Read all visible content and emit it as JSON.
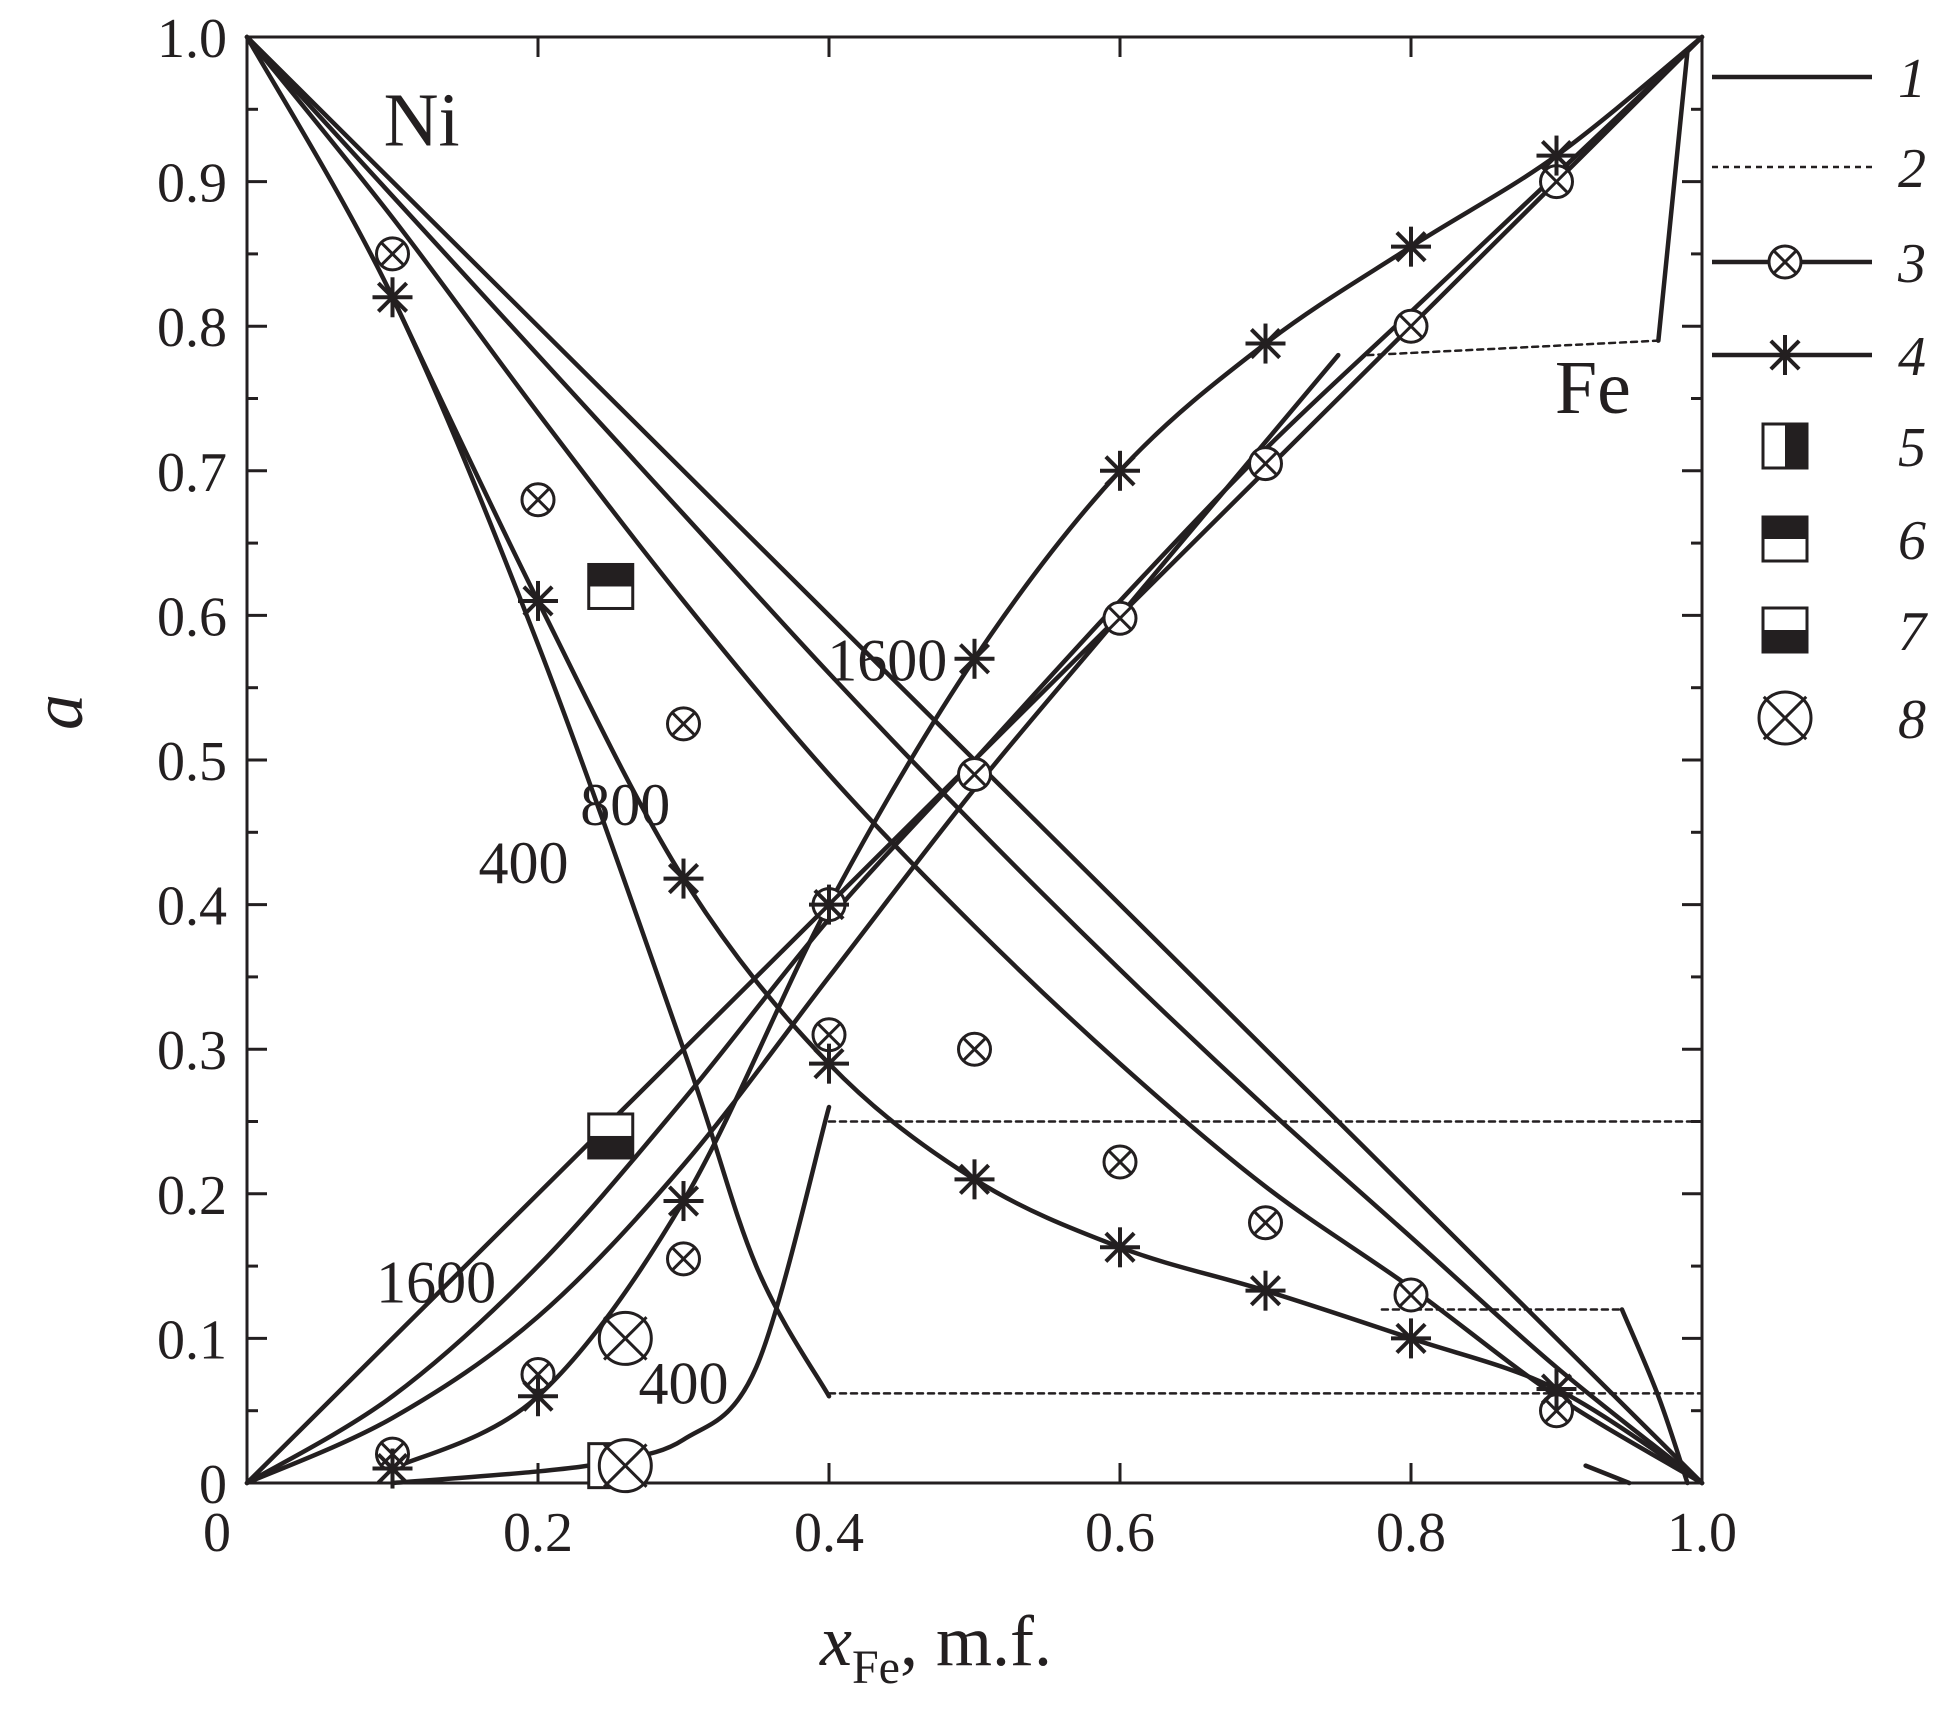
{
  "colors": {
    "ink": "#231f20",
    "background": "#ffffff"
  },
  "chart_data": {
    "type": "line",
    "ylabel": "a",
    "xlabel_main": "x",
    "xlabel_sub": "Fe",
    "xlabel_tail": ", m.f.",
    "xlim": [
      0,
      1
    ],
    "ylim": [
      0,
      1
    ],
    "x_ticks": [
      "0",
      "0.2",
      "0.4",
      "0.6",
      "0.8",
      "1.0"
    ],
    "y_ticks": [
      "0",
      "0.1",
      "0.2",
      "0.3",
      "0.4",
      "0.5",
      "0.6",
      "0.7",
      "0.8",
      "0.9",
      "1.0"
    ],
    "grid": false,
    "legend_position": "right, outside plot",
    "legend": [
      "1",
      "2",
      "3",
      "4",
      "5",
      "6",
      "7",
      "8"
    ],
    "annotations": [
      {
        "text": "Ni",
        "x": 0.12,
        "y": 0.925
      },
      {
        "text": "Fe",
        "x": 0.925,
        "y": 0.74
      },
      {
        "text": "1600",
        "x": 0.44,
        "y": 0.555
      },
      {
        "text": "800",
        "x": 0.26,
        "y": 0.455
      },
      {
        "text": "400",
        "x": 0.19,
        "y": 0.415
      },
      {
        "text": "1600",
        "x": 0.13,
        "y": 0.125
      },
      {
        "text": "400",
        "x": 0.3,
        "y": 0.055
      }
    ],
    "series": [
      {
        "legend": "1",
        "style": "solid",
        "x": [
          0,
          1
        ],
        "y": [
          1.0,
          0.0
        ]
      },
      {
        "legend": "1",
        "style": "solid",
        "x": [
          0,
          1
        ],
        "y": [
          0.0,
          1.0
        ]
      },
      {
        "legend": "1",
        "style": "solid",
        "x": [
          0,
          0.1,
          0.2,
          0.3,
          0.4,
          0.5,
          0.6,
          0.7,
          0.8,
          0.9,
          1.0
        ],
        "y": [
          1.0,
          0.89,
          0.78,
          0.67,
          0.56,
          0.455,
          0.355,
          0.26,
          0.17,
          0.08,
          0.0
        ]
      },
      {
        "legend": "1",
        "style": "solid",
        "x": [
          0,
          0.1,
          0.2,
          0.3,
          0.4,
          0.5,
          0.6,
          0.7,
          0.8,
          0.9,
          1.0
        ],
        "y": [
          1.0,
          0.875,
          0.74,
          0.61,
          0.49,
          0.385,
          0.29,
          0.205,
          0.135,
          0.06,
          0.0
        ]
      },
      {
        "legend": "1",
        "style": "solid",
        "x": [
          0,
          0.1,
          0.2,
          0.3,
          0.35,
          0.4
        ],
        "y": [
          1.0,
          0.82,
          0.58,
          0.3,
          0.15,
          0.06
        ]
      },
      {
        "legend": "1",
        "style": "solid",
        "x": [
          0,
          0.1,
          0.2,
          0.3,
          0.4,
          0.5,
          0.6,
          0.7,
          0.8,
          0.9,
          1.0
        ],
        "y": [
          0.0,
          0.06,
          0.15,
          0.265,
          0.39,
          0.5,
          0.61,
          0.715,
          0.81,
          0.905,
          1.0
        ]
      },
      {
        "legend": "1",
        "style": "solid",
        "x": [
          0,
          0.1,
          0.2,
          0.3,
          0.4,
          0.5,
          0.6,
          0.7,
          0.75
        ],
        "y": [
          0.0,
          0.045,
          0.115,
          0.22,
          0.35,
          0.48,
          0.6,
          0.72,
          0.78
        ]
      },
      {
        "legend": "1",
        "style": "solid",
        "x": [
          0.1,
          0.2,
          0.25,
          0.3,
          0.35,
          0.4
        ],
        "y": [
          0.0,
          0.008,
          0.015,
          0.03,
          0.08,
          0.26
        ]
      },
      {
        "legend": "1",
        "style": "solid",
        "x": [
          0.945,
          0.97,
          0.99
        ],
        "y": [
          0.12,
          0.06,
          0.0
        ]
      },
      {
        "legend": "1",
        "style": "solid",
        "x": [
          0.92,
          0.95
        ],
        "y": [
          0.012,
          0.0
        ]
      },
      {
        "legend": "1",
        "style": "solid",
        "x": [
          0.97,
          0.99
        ],
        "y": [
          0.79,
          0.99
        ]
      },
      {
        "legend": "2",
        "style": "dotted",
        "x": [
          0.4,
          1.0
        ],
        "y": [
          0.25,
          0.25
        ]
      },
      {
        "legend": "2",
        "style": "dotted",
        "x": [
          0.4,
          1.0
        ],
        "y": [
          0.062,
          0.062
        ]
      },
      {
        "legend": "2",
        "style": "dotted",
        "x": [
          0.78,
          0.945
        ],
        "y": [
          0.12,
          0.12
        ]
      },
      {
        "legend": "2",
        "style": "dotted",
        "x": [
          0.77,
          0.97
        ],
        "y": [
          0.78,
          0.79
        ]
      },
      {
        "legend": "3",
        "marker": "circle-x-small",
        "x": [
          0.1,
          0.2,
          0.3,
          0.4,
          0.5,
          0.6,
          0.7,
          0.8,
          0.9
        ],
        "y": [
          0.85,
          0.68,
          0.525,
          0.4,
          0.3,
          0.222,
          0.18,
          0.13,
          0.05
        ]
      },
      {
        "legend": "3",
        "marker": "circle-x-small",
        "x": [
          0.1,
          0.2,
          0.3,
          0.4,
          0.5,
          0.6,
          0.7,
          0.8,
          0.9
        ],
        "y": [
          0.02,
          0.075,
          0.155,
          0.31,
          0.49,
          0.598,
          0.705,
          0.8,
          0.9
        ]
      },
      {
        "legend": "4",
        "marker": "asterisk",
        "x": [
          0.1,
          0.2,
          0.3,
          0.4,
          0.5,
          0.6,
          0.7,
          0.8,
          0.9
        ],
        "y": [
          0.82,
          0.61,
          0.418,
          0.29,
          0.21,
          0.163,
          0.133,
          0.1,
          0.065
        ]
      },
      {
        "legend": "4",
        "marker": "asterisk",
        "x": [
          0.1,
          0.2,
          0.3,
          0.4,
          0.5,
          0.6,
          0.7,
          0.8,
          0.9
        ],
        "y": [
          0.01,
          0.06,
          0.195,
          0.4,
          0.57,
          0.7,
          0.788,
          0.855,
          0.918
        ]
      },
      {
        "legend": "4",
        "style": "solid",
        "x": [
          0.1,
          0.2,
          0.3,
          0.4,
          0.5,
          0.6,
          0.7,
          0.8,
          0.9,
          1.0
        ],
        "y": [
          0.82,
          0.61,
          0.418,
          0.29,
          0.21,
          0.163,
          0.133,
          0.1,
          0.065,
          0.0
        ]
      },
      {
        "legend": "4",
        "style": "solid",
        "x": [
          0.1,
          0.2,
          0.3,
          0.4,
          0.5,
          0.6,
          0.7,
          0.8,
          0.9,
          1.0
        ],
        "y": [
          0.01,
          0.06,
          0.195,
          0.4,
          0.57,
          0.7,
          0.788,
          0.855,
          0.918,
          1.0
        ]
      },
      {
        "legend": "5",
        "marker": "square-right-half",
        "x": [
          0.25
        ],
        "y": [
          0.012
        ]
      },
      {
        "legend": "6",
        "marker": "square-top-half",
        "x": [
          0.25
        ],
        "y": [
          0.62
        ]
      },
      {
        "legend": "7",
        "marker": "square-bottom-half",
        "x": [
          0.25
        ],
        "y": [
          0.24
        ]
      },
      {
        "legend": "8",
        "marker": "circle-x-large",
        "x": [
          0.26,
          0.26
        ],
        "y": [
          0.1,
          0.012
        ]
      }
    ]
  }
}
